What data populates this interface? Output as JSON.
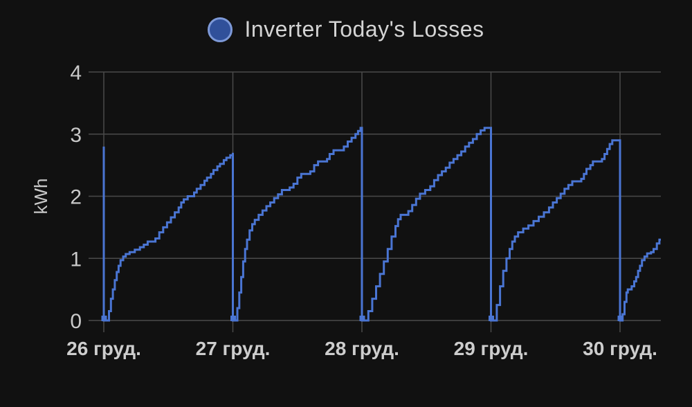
{
  "title": {
    "text": "Inverter Today's Losses"
  },
  "legend": {
    "label": "Inverter Today's Losses",
    "marker_fill": "#30509a",
    "marker_stroke": "#7d99d8"
  },
  "colors": {
    "background": "#111111",
    "grid": "#4a4a4a",
    "line": "#4a75d3",
    "y_label": "#c9c9c9",
    "x_label": "#cdcdcd"
  },
  "chart_data": {
    "type": "line",
    "step": true,
    "title": "Inverter Today's Losses",
    "ylabel": "kWh",
    "unit": "kWh",
    "ylim": [
      0,
      4
    ],
    "y_ticks": [
      0,
      1,
      2,
      3,
      4
    ],
    "x_tick_labels": [
      "26 груд.",
      "27 груд.",
      "28 груд.",
      "29 груд.",
      "30 груд."
    ],
    "grid": true,
    "legend_position": "top",
    "prev_day_final_value": 2.8,
    "day_peaks": [
      2.7,
      3.1,
      3.1,
      2.9,
      1.3
    ],
    "days": [
      {
        "label": "26 груд.",
        "points": [
          [
            0,
            0
          ],
          [
            0.025,
            0
          ],
          [
            0.04,
            0.15
          ],
          [
            0.055,
            0.35
          ],
          [
            0.07,
            0.5
          ],
          [
            0.085,
            0.65
          ],
          [
            0.1,
            0.78
          ],
          [
            0.115,
            0.88
          ],
          [
            0.13,
            0.97
          ],
          [
            0.15,
            1.03
          ],
          [
            0.17,
            1.07
          ],
          [
            0.2,
            1.1
          ],
          [
            0.24,
            1.14
          ],
          [
            0.28,
            1.18
          ],
          [
            0.31,
            1.22
          ],
          [
            0.34,
            1.27
          ],
          [
            0.4,
            1.32
          ],
          [
            0.43,
            1.42
          ],
          [
            0.46,
            1.5
          ],
          [
            0.49,
            1.58
          ],
          [
            0.52,
            1.66
          ],
          [
            0.55,
            1.74
          ],
          [
            0.58,
            1.82
          ],
          [
            0.6,
            1.9
          ],
          [
            0.62,
            1.95
          ],
          [
            0.65,
            2.0
          ],
          [
            0.7,
            2.06
          ],
          [
            0.72,
            2.12
          ],
          [
            0.75,
            2.18
          ],
          [
            0.78,
            2.25
          ],
          [
            0.8,
            2.3
          ],
          [
            0.83,
            2.36
          ],
          [
            0.85,
            2.42
          ],
          [
            0.88,
            2.48
          ],
          [
            0.9,
            2.52
          ],
          [
            0.93,
            2.58
          ],
          [
            0.95,
            2.62
          ],
          [
            0.98,
            2.66
          ],
          [
            1,
            2.7
          ]
        ]
      },
      {
        "label": "27 груд.",
        "points": [
          [
            0,
            0
          ],
          [
            0.02,
            0
          ],
          [
            0.035,
            0.2
          ],
          [
            0.05,
            0.45
          ],
          [
            0.065,
            0.7
          ],
          [
            0.08,
            0.95
          ],
          [
            0.095,
            1.15
          ],
          [
            0.11,
            1.3
          ],
          [
            0.13,
            1.45
          ],
          [
            0.15,
            1.55
          ],
          [
            0.17,
            1.62
          ],
          [
            0.2,
            1.7
          ],
          [
            0.23,
            1.77
          ],
          [
            0.26,
            1.84
          ],
          [
            0.29,
            1.9
          ],
          [
            0.32,
            1.97
          ],
          [
            0.35,
            2.03
          ],
          [
            0.38,
            2.1
          ],
          [
            0.44,
            2.14
          ],
          [
            0.47,
            2.2
          ],
          [
            0.5,
            2.3
          ],
          [
            0.53,
            2.36
          ],
          [
            0.6,
            2.4
          ],
          [
            0.63,
            2.5
          ],
          [
            0.66,
            2.56
          ],
          [
            0.73,
            2.6
          ],
          [
            0.75,
            2.68
          ],
          [
            0.78,
            2.74
          ],
          [
            0.86,
            2.8
          ],
          [
            0.89,
            2.88
          ],
          [
            0.92,
            2.94
          ],
          [
            0.95,
            3.0
          ],
          [
            0.97,
            3.05
          ],
          [
            0.99,
            3.1
          ],
          [
            1,
            3.1
          ]
        ]
      },
      {
        "label": "28 груд.",
        "points": [
          [
            0,
            0
          ],
          [
            0.02,
            0
          ],
          [
            0.05,
            0.15
          ],
          [
            0.08,
            0.35
          ],
          [
            0.11,
            0.55
          ],
          [
            0.14,
            0.75
          ],
          [
            0.17,
            0.95
          ],
          [
            0.2,
            1.15
          ],
          [
            0.23,
            1.35
          ],
          [
            0.26,
            1.52
          ],
          [
            0.28,
            1.63
          ],
          [
            0.3,
            1.7
          ],
          [
            0.36,
            1.76
          ],
          [
            0.39,
            1.86
          ],
          [
            0.42,
            1.96
          ],
          [
            0.45,
            2.04
          ],
          [
            0.49,
            2.1
          ],
          [
            0.53,
            2.16
          ],
          [
            0.56,
            2.26
          ],
          [
            0.59,
            2.34
          ],
          [
            0.62,
            2.4
          ],
          [
            0.65,
            2.46
          ],
          [
            0.68,
            2.54
          ],
          [
            0.71,
            2.6
          ],
          [
            0.74,
            2.66
          ],
          [
            0.77,
            2.72
          ],
          [
            0.8,
            2.8
          ],
          [
            0.83,
            2.86
          ],
          [
            0.86,
            2.92
          ],
          [
            0.89,
            3.0
          ],
          [
            0.92,
            3.06
          ],
          [
            0.95,
            3.1
          ],
          [
            1,
            3.1
          ]
        ]
      },
      {
        "label": "29 груд.",
        "points": [
          [
            0,
            0
          ],
          [
            0.02,
            0
          ],
          [
            0.045,
            0.25
          ],
          [
            0.07,
            0.55
          ],
          [
            0.095,
            0.8
          ],
          [
            0.12,
            1.0
          ],
          [
            0.145,
            1.15
          ],
          [
            0.165,
            1.27
          ],
          [
            0.185,
            1.35
          ],
          [
            0.21,
            1.42
          ],
          [
            0.25,
            1.48
          ],
          [
            0.29,
            1.53
          ],
          [
            0.33,
            1.6
          ],
          [
            0.37,
            1.67
          ],
          [
            0.41,
            1.74
          ],
          [
            0.45,
            1.82
          ],
          [
            0.48,
            1.9
          ],
          [
            0.51,
            1.97
          ],
          [
            0.54,
            2.04
          ],
          [
            0.57,
            2.12
          ],
          [
            0.6,
            2.18
          ],
          [
            0.63,
            2.24
          ],
          [
            0.7,
            2.28
          ],
          [
            0.72,
            2.36
          ],
          [
            0.74,
            2.44
          ],
          [
            0.77,
            2.5
          ],
          [
            0.79,
            2.56
          ],
          [
            0.86,
            2.6
          ],
          [
            0.88,
            2.68
          ],
          [
            0.9,
            2.76
          ],
          [
            0.92,
            2.84
          ],
          [
            0.94,
            2.9
          ],
          [
            1,
            2.9
          ]
        ]
      },
      {
        "label": "30 груд.",
        "points": [
          [
            0,
            0
          ],
          [
            0.02,
            0.1
          ],
          [
            0.035,
            0.3
          ],
          [
            0.05,
            0.45
          ],
          [
            0.06,
            0.5
          ],
          [
            0.09,
            0.55
          ],
          [
            0.11,
            0.63
          ],
          [
            0.125,
            0.7
          ],
          [
            0.14,
            0.8
          ],
          [
            0.155,
            0.88
          ],
          [
            0.17,
            0.97
          ],
          [
            0.19,
            1.03
          ],
          [
            0.21,
            1.08
          ],
          [
            0.24,
            1.1
          ],
          [
            0.26,
            1.15
          ],
          [
            0.285,
            1.24
          ],
          [
            0.305,
            1.3
          ],
          [
            0.316,
            1.3
          ]
        ]
      }
    ]
  }
}
